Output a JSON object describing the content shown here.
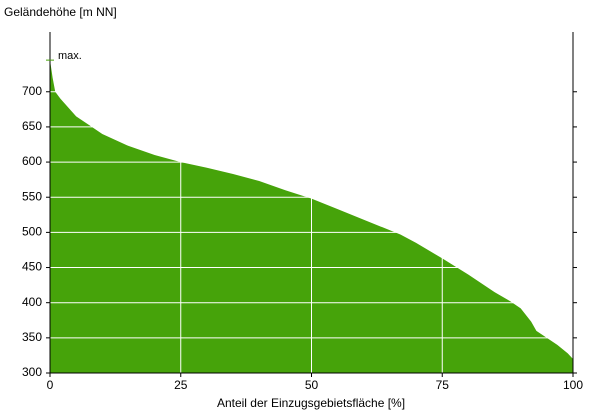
{
  "chart_data": {
    "type": "area",
    "ylabel": "Geländehöhe [m NN]",
    "xlabel": "Anteil der Einzugsgebietsfläche [%]",
    "annotation": "max.",
    "color": "#46a30a",
    "grid": true,
    "x": [
      0,
      0.5,
      1,
      2,
      5,
      8,
      10,
      15,
      20,
      25,
      30,
      35,
      40,
      45,
      50,
      55,
      60,
      65,
      67,
      70,
      75,
      80,
      85,
      88,
      90,
      92,
      93,
      95,
      97,
      99,
      100
    ],
    "values": [
      745,
      720,
      700,
      690,
      665,
      650,
      640,
      623,
      610,
      600,
      592,
      583,
      573,
      560,
      548,
      533,
      518,
      503,
      497,
      485,
      463,
      440,
      415,
      402,
      392,
      373,
      360,
      350,
      340,
      328,
      320
    ],
    "xlim": [
      0,
      100
    ],
    "xticks": [
      0,
      25,
      50,
      75,
      100
    ],
    "ylim": [
      300,
      785
    ],
    "yticks": [
      300,
      350,
      400,
      450,
      500,
      550,
      600,
      650,
      700
    ]
  }
}
